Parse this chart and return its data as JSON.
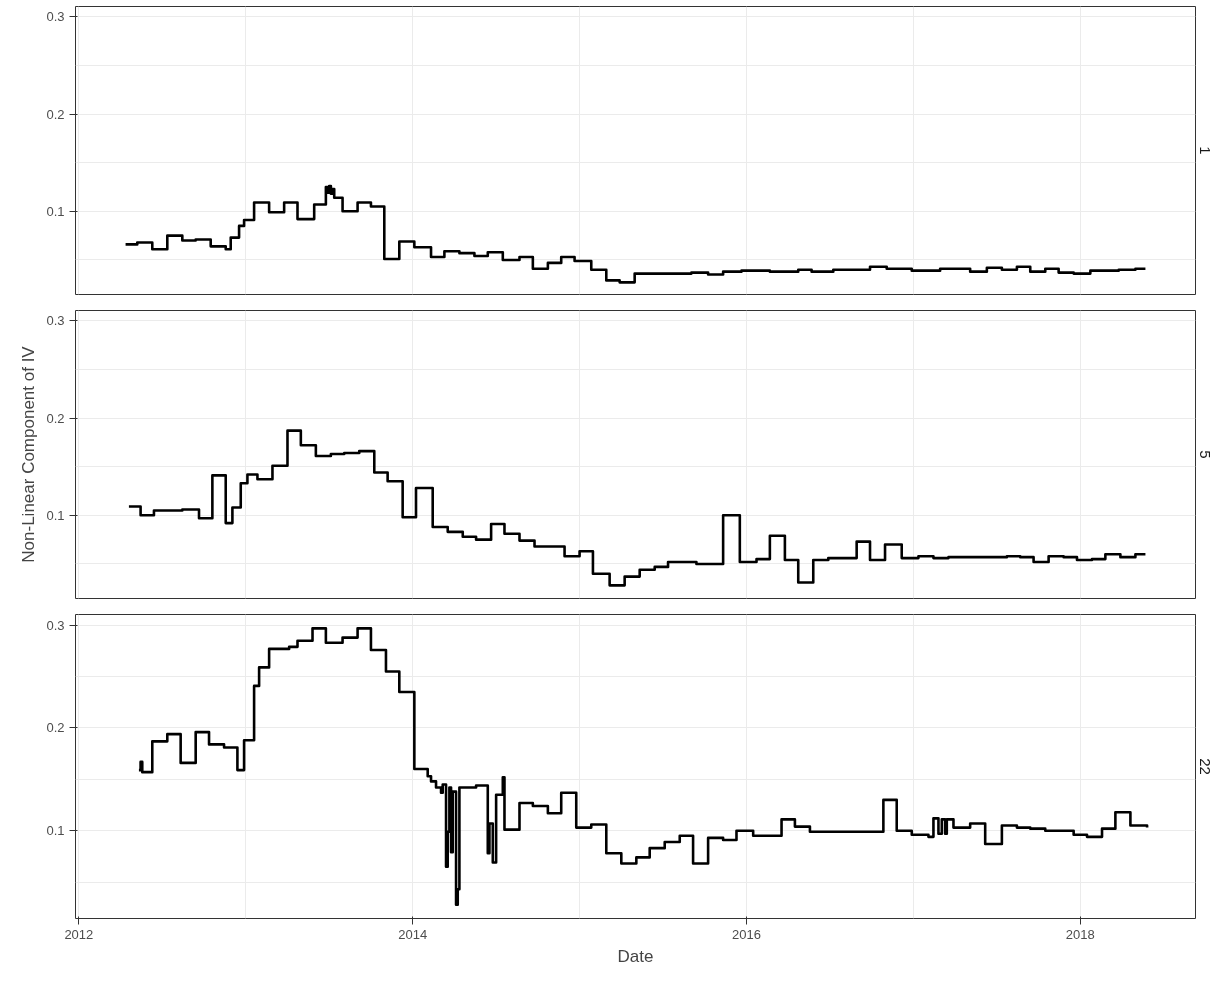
{
  "chart_data": [
    {
      "type": "step",
      "title": "1",
      "tick_labels": "y",
      "grid": true,
      "xlim": [
        2011.98,
        2018.69
      ],
      "ylim": [
        0.0145,
        0.3105
      ],
      "xticks": [
        2012,
        2014,
        2016,
        2018
      ],
      "yticks": [
        0.1,
        0.2,
        0.3
      ],
      "series": [
        {
          "color": "#000000",
          "x": [
            2012.28,
            2012.35,
            2012.44,
            2012.53,
            2012.62,
            2012.7,
            2012.79,
            2012.88,
            2012.91,
            2012.96,
            2012.99,
            2013.05,
            2013.14,
            2013.23,
            2013.31,
            2013.41,
            2013.48,
            2013.49,
            2013.5,
            2013.51,
            2013.52,
            2013.53,
            2013.58,
            2013.67,
            2013.75,
            2013.83,
            2013.92,
            2014.01,
            2014.11,
            2014.19,
            2014.28,
            2014.37,
            2014.45,
            2014.54,
            2014.64,
            2014.72,
            2014.81,
            2014.89,
            2014.97,
            2015.07,
            2015.16,
            2015.24,
            2015.33,
            2015.67,
            2015.77,
            2015.86,
            2015.97,
            2016.14,
            2016.31,
            2016.39,
            2016.52,
            2016.74,
            2016.84,
            2016.99,
            2017.16,
            2017.34,
            2017.44,
            2017.53,
            2017.62,
            2017.7,
            2017.79,
            2017.87,
            2017.96,
            2018.06,
            2018.23,
            2018.33,
            2018.39
          ],
          "values": [
            0.066,
            0.068,
            0.061,
            0.075,
            0.07,
            0.071,
            0.064,
            0.061,
            0.073,
            0.085,
            0.091,
            0.109,
            0.099,
            0.109,
            0.092,
            0.107,
            0.125,
            0.119,
            0.126,
            0.118,
            0.123,
            0.114,
            0.1,
            0.109,
            0.105,
            0.051,
            0.069,
            0.063,
            0.053,
            0.059,
            0.057,
            0.054,
            0.058,
            0.05,
            0.053,
            0.041,
            0.047,
            0.053,
            0.049,
            0.04,
            0.029,
            0.027,
            0.036,
            0.037,
            0.035,
            0.038,
            0.039,
            0.038,
            0.04,
            0.038,
            0.04,
            0.043,
            0.041,
            0.039,
            0.041,
            0.038,
            0.042,
            0.04,
            0.043,
            0.038,
            0.041,
            0.037,
            0.036,
            0.039,
            0.04,
            0.041,
            0.041
          ]
        }
      ]
    },
    {
      "type": "step",
      "title": "5",
      "ylabel": "Non-Linear Component of IV",
      "tick_labels": "y",
      "grid": true,
      "xlim": [
        2011.98,
        2018.69
      ],
      "ylim": [
        0.0145,
        0.3105
      ],
      "xticks": [
        2012,
        2014,
        2016,
        2018
      ],
      "yticks": [
        0.1,
        0.2,
        0.3
      ],
      "series": [
        {
          "color": "#000000",
          "x": [
            2012.3,
            2012.37,
            2012.45,
            2012.62,
            2012.72,
            2012.8,
            2012.88,
            2012.92,
            2012.97,
            2013.01,
            2013.07,
            2013.16,
            2013.25,
            2013.33,
            2013.42,
            2013.51,
            2013.59,
            2013.68,
            2013.77,
            2013.85,
            2013.94,
            2014.02,
            2014.12,
            2014.21,
            2014.3,
            2014.38,
            2014.47,
            2014.55,
            2014.64,
            2014.73,
            2014.91,
            2015.0,
            2015.08,
            2015.18,
            2015.27,
            2015.36,
            2015.45,
            2015.53,
            2015.7,
            2015.86,
            2015.96,
            2016.06,
            2016.14,
            2016.23,
            2016.31,
            2016.4,
            2016.49,
            2016.66,
            2016.74,
            2016.83,
            2016.93,
            2017.03,
            2017.12,
            2017.21,
            2017.56,
            2017.64,
            2017.72,
            2017.81,
            2017.9,
            2017.98,
            2018.07,
            2018.15,
            2018.24,
            2018.33,
            2018.39
          ],
          "values": [
            0.109,
            0.1,
            0.105,
            0.106,
            0.097,
            0.141,
            0.092,
            0.108,
            0.133,
            0.142,
            0.137,
            0.151,
            0.187,
            0.172,
            0.161,
            0.163,
            0.164,
            0.166,
            0.144,
            0.135,
            0.098,
            0.128,
            0.088,
            0.083,
            0.078,
            0.075,
            0.091,
            0.081,
            0.074,
            0.068,
            0.058,
            0.063,
            0.04,
            0.028,
            0.037,
            0.044,
            0.047,
            0.052,
            0.05,
            0.1,
            0.052,
            0.055,
            0.079,
            0.054,
            0.031,
            0.054,
            0.056,
            0.073,
            0.054,
            0.07,
            0.056,
            0.058,
            0.056,
            0.057,
            0.058,
            0.057,
            0.052,
            0.058,
            0.057,
            0.054,
            0.055,
            0.06,
            0.057,
            0.06,
            0.06
          ]
        }
      ]
    },
    {
      "type": "step",
      "title": "22",
      "xlabel": "Date",
      "grid": true,
      "xlim": [
        2011.98,
        2018.69
      ],
      "ylim": [
        0.0145,
        0.3105
      ],
      "xticks": [
        2012,
        2014,
        2016,
        2018
      ],
      "yticks": [
        0.1,
        0.2,
        0.3
      ],
      "series": [
        {
          "color": "#000000",
          "x": [
            2012.36,
            2012.37,
            2012.38,
            2012.44,
            2012.53,
            2012.61,
            2012.7,
            2012.78,
            2012.87,
            2012.95,
            2012.99,
            2013.05,
            2013.08,
            2013.14,
            2013.26,
            2013.31,
            2013.4,
            2013.48,
            2013.58,
            2013.67,
            2013.75,
            2013.84,
            2013.92,
            2014.01,
            2014.09,
            2014.11,
            2014.14,
            2014.17,
            2014.18,
            2014.2,
            2014.21,
            2014.22,
            2014.23,
            2014.24,
            2014.26,
            2014.27,
            2014.28,
            2014.38,
            2014.45,
            2014.46,
            2014.48,
            2014.5,
            2014.54,
            2014.55,
            2014.64,
            2014.72,
            2014.81,
            2014.89,
            2014.98,
            2015.07,
            2015.16,
            2015.25,
            2015.34,
            2015.42,
            2015.51,
            2015.6,
            2015.68,
            2015.77,
            2015.86,
            2015.94,
            2016.04,
            2016.21,
            2016.29,
            2016.38,
            2016.82,
            2016.9,
            2016.99,
            2017.09,
            2017.12,
            2017.15,
            2017.17,
            2017.19,
            2017.2,
            2017.24,
            2017.34,
            2017.43,
            2017.53,
            2017.62,
            2017.7,
            2017.79,
            2017.87,
            2017.96,
            2018.04,
            2018.13,
            2018.21,
            2018.3,
            2018.4
          ],
          "values": [
            0.159,
            0.167,
            0.157,
            0.187,
            0.194,
            0.166,
            0.196,
            0.184,
            0.181,
            0.159,
            0.188,
            0.241,
            0.259,
            0.277,
            0.279,
            0.285,
            0.297,
            0.283,
            0.288,
            0.297,
            0.276,
            0.255,
            0.235,
            0.16,
            0.153,
            0.148,
            0.142,
            0.137,
            0.145,
            0.065,
            0.099,
            0.142,
            0.079,
            0.138,
            0.028,
            0.043,
            0.142,
            0.144,
            0.078,
            0.107,
            0.069,
            0.135,
            0.152,
            0.101,
            0.127,
            0.124,
            0.117,
            0.137,
            0.103,
            0.106,
            0.078,
            0.068,
            0.074,
            0.083,
            0.089,
            0.095,
            0.068,
            0.093,
            0.091,
            0.1,
            0.095,
            0.111,
            0.104,
            0.099,
            0.13,
            0.1,
            0.096,
            0.094,
            0.112,
            0.097,
            0.111,
            0.097,
            0.111,
            0.103,
            0.107,
            0.087,
            0.105,
            0.103,
            0.102,
            0.1,
            0.1,
            0.096,
            0.094,
            0.102,
            0.118,
            0.105,
            0.103
          ]
        }
      ]
    }
  ]
}
